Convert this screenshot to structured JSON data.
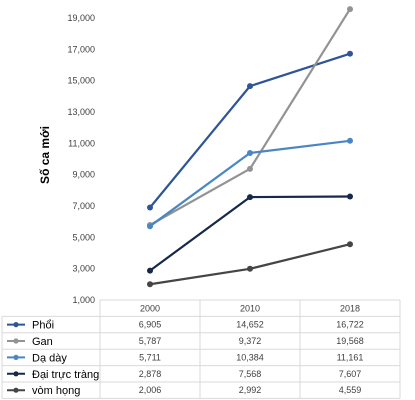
{
  "chart_data": {
    "type": "line",
    "ylabel": "Số ca mới",
    "categories": [
      "2000",
      "2010",
      "2018"
    ],
    "ylim": [
      1000,
      19000
    ],
    "yticks": [
      "1,000",
      "3,000",
      "5,000",
      "7,000",
      "9,000",
      "11,000",
      "13,000",
      "15,000",
      "17,000",
      "19,000"
    ],
    "grid": false,
    "legend": "data-table",
    "series": [
      {
        "name": "Phổi",
        "color": "#2e5597",
        "values": [
          6905,
          14652,
          16722
        ],
        "labels": [
          "6,905",
          "14,652",
          "16,722"
        ]
      },
      {
        "name": "Gan",
        "color": "#939393",
        "values": [
          5787,
          9372,
          19568
        ],
        "labels": [
          "5,787",
          "9,372",
          "19,568"
        ]
      },
      {
        "name": "Dạ dày",
        "color": "#4a86c5",
        "values": [
          5711,
          10384,
          11161
        ],
        "labels": [
          "5,711",
          "10,384",
          "11,161"
        ]
      },
      {
        "name": "Đại trực tràng",
        "color": "#17294b",
        "values": [
          2878,
          7568,
          7607
        ],
        "labels": [
          "2,878",
          "7,568",
          "7,607"
        ]
      },
      {
        "name": "vòm họng",
        "color": "#454545",
        "values": [
          2006,
          2992,
          4559
        ],
        "labels": [
          "2,006",
          "2,992",
          "4,559"
        ]
      }
    ]
  }
}
